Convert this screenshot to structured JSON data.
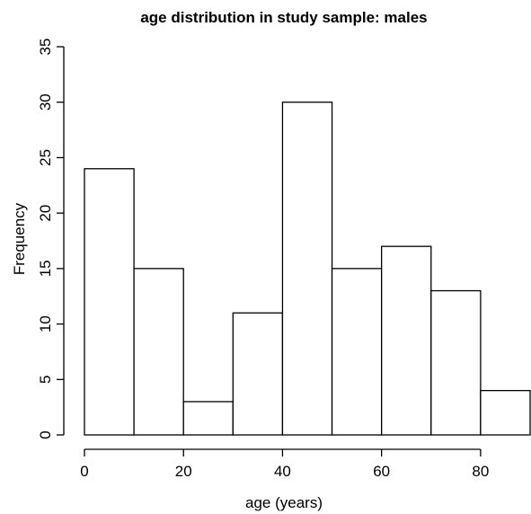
{
  "chart_data": {
    "type": "bar",
    "title": "age distribution in study sample: males",
    "xlabel": "age (years)",
    "ylabel": "Frequency",
    "bins": [
      {
        "from": 0,
        "to": 10,
        "count": 24
      },
      {
        "from": 10,
        "to": 20,
        "count": 15
      },
      {
        "from": 20,
        "to": 30,
        "count": 3
      },
      {
        "from": 30,
        "to": 40,
        "count": 11
      },
      {
        "from": 40,
        "to": 50,
        "count": 30
      },
      {
        "from": 50,
        "to": 60,
        "count": 15
      },
      {
        "from": 60,
        "to": 70,
        "count": 17
      },
      {
        "from": 70,
        "to": 80,
        "count": 13
      },
      {
        "from": 80,
        "to": 90,
        "count": 4
      }
    ],
    "xlim": [
      0,
      90
    ],
    "ylim": [
      0,
      35
    ],
    "xticks": [
      0,
      20,
      40,
      60,
      80
    ],
    "yticks": [
      0,
      5,
      10,
      15,
      20,
      25,
      30,
      35
    ],
    "grid": false,
    "legend": "none"
  }
}
